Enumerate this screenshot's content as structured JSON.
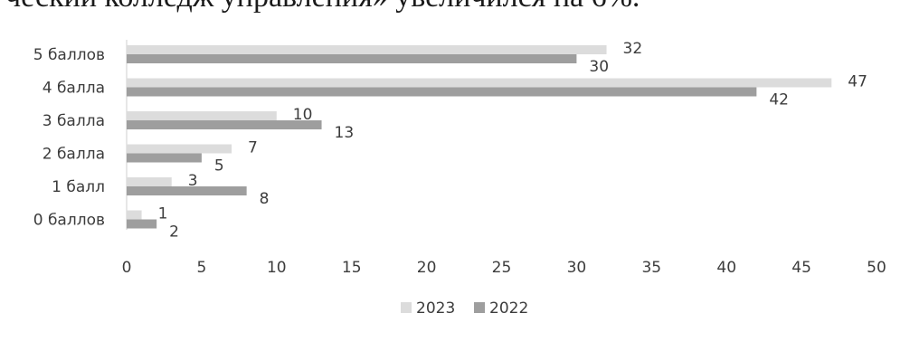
{
  "document": {
    "headline": "ческий колледж управления» увеличился на 6%."
  },
  "chart_data": {
    "type": "bar",
    "orientation": "horizontal",
    "categories": [
      "5 баллов",
      "4 балла",
      "3 балла",
      "2 балла",
      "1 балл",
      "0 баллов"
    ],
    "series": [
      {
        "name": "2023",
        "values": [
          32,
          47,
          10,
          7,
          3,
          1
        ],
        "color": "#dcdcdc"
      },
      {
        "name": "2022",
        "values": [
          30,
          42,
          13,
          5,
          8,
          2
        ],
        "color": "#9e9e9e"
      }
    ],
    "data_labels": {
      "2023": [
        "32",
        "47",
        "10",
        "7",
        "3",
        "1"
      ],
      "2022": [
        "30",
        "42",
        "13",
        "5",
        "8",
        "2"
      ]
    },
    "xlim": [
      0,
      50
    ],
    "xticks": [
      "0",
      "5",
      "10",
      "15",
      "20",
      "25",
      "30",
      "35",
      "40",
      "45",
      "50"
    ],
    "grid": false,
    "legend": {
      "placement": "bottom",
      "entries": [
        "2023",
        "2022"
      ]
    }
  }
}
